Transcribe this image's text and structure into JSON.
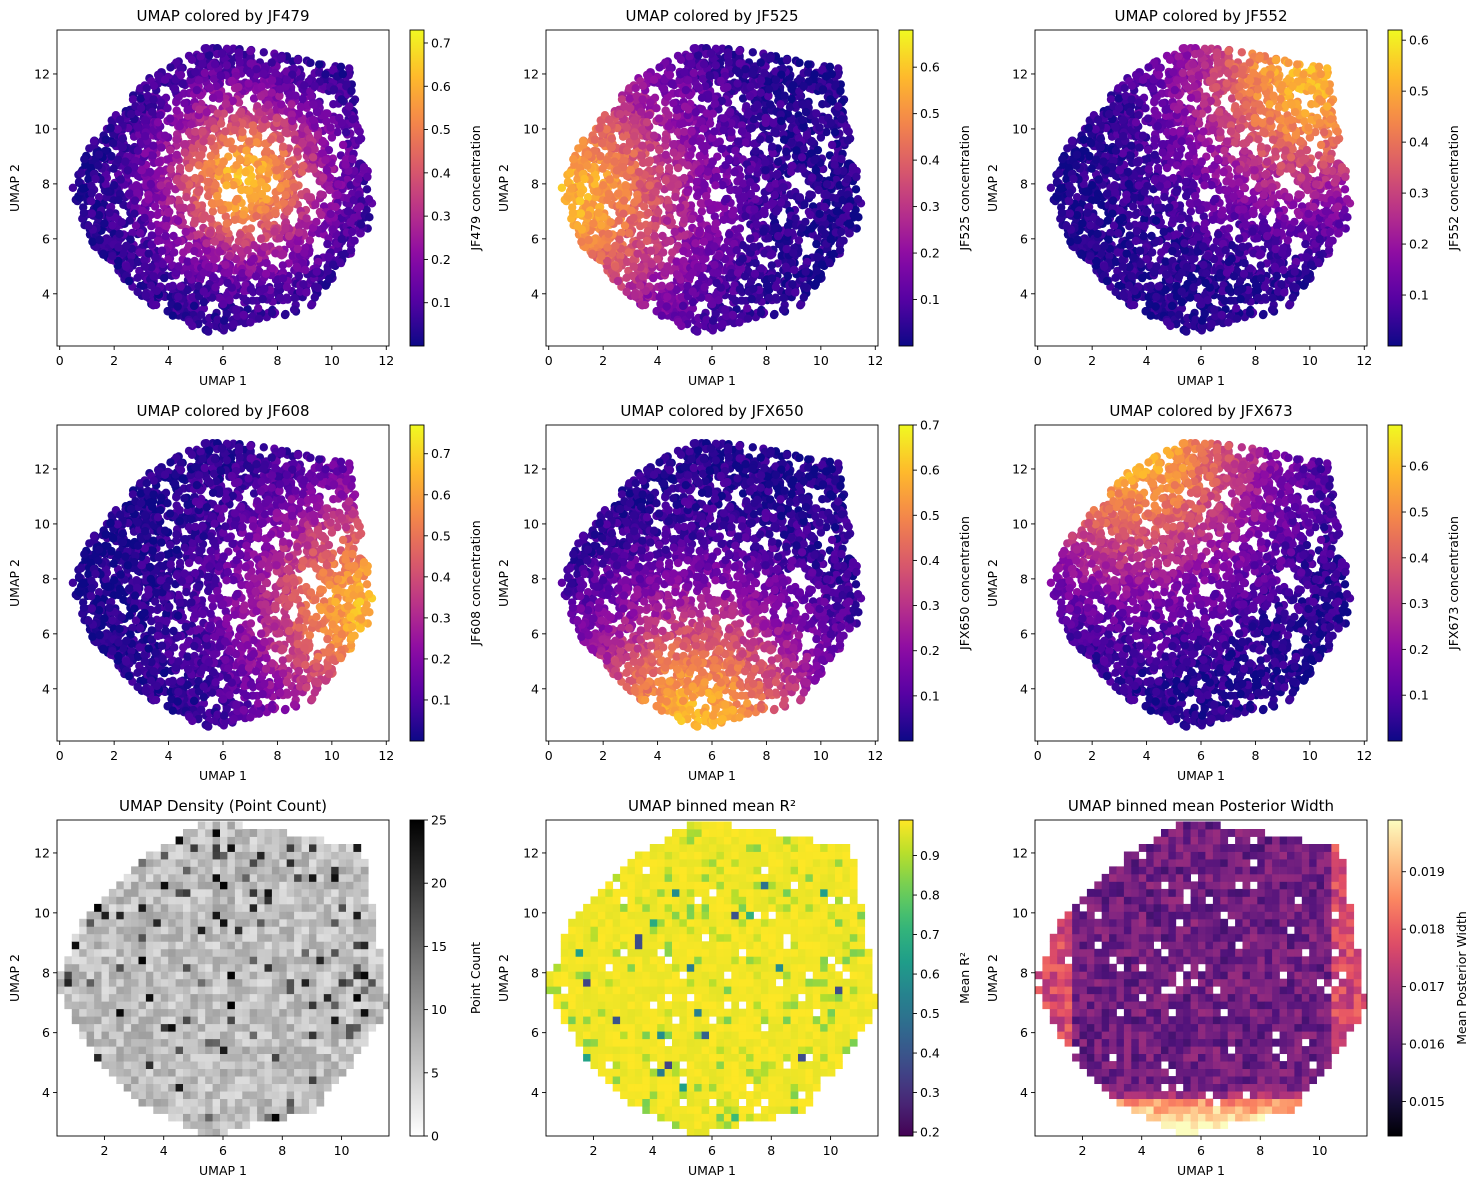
{
  "chart_data": [
    {
      "type": "scatter",
      "title": "UMAP colored by JF479",
      "xlabel": "UMAP 1",
      "ylabel": "UMAP 2",
      "xlim": [
        -0.1,
        12.1
      ],
      "ylim": [
        2.1,
        13.6
      ],
      "xticks": [
        0,
        2,
        4,
        6,
        8,
        10,
        12
      ],
      "yticks": [
        4,
        6,
        8,
        10,
        12
      ],
      "colormap": "plasma",
      "colorbar": {
        "label": "JF479 concentration",
        "range": [
          0.0,
          0.73
        ],
        "ticks": [
          0.1,
          0.2,
          0.3,
          0.4,
          0.5,
          0.6,
          0.7
        ]
      },
      "pattern": {
        "kind": "center",
        "cx": 6.8,
        "cy": 8.2,
        "sigma": 2.1
      }
    },
    {
      "type": "scatter",
      "title": "UMAP colored by JF525",
      "xlabel": "UMAP 1",
      "ylabel": "UMAP 2",
      "xlim": [
        -0.1,
        12.1
      ],
      "ylim": [
        2.1,
        13.6
      ],
      "xticks": [
        0,
        2,
        4,
        6,
        8,
        10,
        12
      ],
      "yticks": [
        4,
        6,
        8,
        10,
        12
      ],
      "colormap": "plasma",
      "colorbar": {
        "label": "JF525 concentration",
        "range": [
          0.0,
          0.68
        ],
        "ticks": [
          0.1,
          0.2,
          0.3,
          0.4,
          0.5,
          0.6
        ]
      },
      "pattern": {
        "kind": "left",
        "cx": 0.6,
        "cy": 7.6,
        "sigma": 3.3
      }
    },
    {
      "type": "scatter",
      "title": "UMAP colored by JF552",
      "xlabel": "UMAP 1",
      "ylabel": "UMAP 2",
      "xlim": [
        -0.1,
        12.1
      ],
      "ylim": [
        2.1,
        13.6
      ],
      "xticks": [
        0,
        2,
        4,
        6,
        8,
        10,
        12
      ],
      "yticks": [
        4,
        6,
        8,
        10,
        12
      ],
      "colormap": "plasma",
      "colorbar": {
        "label": "JF552 concentration",
        "range": [
          0.0,
          0.62
        ],
        "ticks": [
          0.1,
          0.2,
          0.3,
          0.4,
          0.5,
          0.6
        ]
      },
      "pattern": {
        "kind": "topright",
        "cx": 9.8,
        "cy": 11.8,
        "sigma": 3.0
      }
    },
    {
      "type": "scatter",
      "title": "UMAP colored by JF608",
      "xlabel": "UMAP 1",
      "ylabel": "UMAP 2",
      "xlim": [
        -0.1,
        12.1
      ],
      "ylim": [
        2.1,
        13.6
      ],
      "xticks": [
        0,
        2,
        4,
        6,
        8,
        10,
        12
      ],
      "yticks": [
        4,
        6,
        8,
        10,
        12
      ],
      "colormap": "plasma",
      "colorbar": {
        "label": "JF608 concentration",
        "range": [
          0.0,
          0.77
        ],
        "ticks": [
          0.1,
          0.2,
          0.3,
          0.4,
          0.5,
          0.6,
          0.7
        ]
      },
      "pattern": {
        "kind": "right",
        "cx": 11.4,
        "cy": 6.8,
        "sigma": 3.0
      }
    },
    {
      "type": "scatter",
      "title": "UMAP colored by JFX650",
      "xlabel": "UMAP 1",
      "ylabel": "UMAP 2",
      "xlim": [
        -0.1,
        12.1
      ],
      "ylim": [
        2.1,
        13.6
      ],
      "xticks": [
        0,
        2,
        4,
        6,
        8,
        10,
        12
      ],
      "yticks": [
        4,
        6,
        8,
        10,
        12
      ],
      "colormap": "plasma",
      "colorbar": {
        "label": "JFX650 concentration",
        "range": [
          0.0,
          0.7
        ],
        "ticks": [
          0.1,
          0.2,
          0.3,
          0.4,
          0.5,
          0.6,
          0.7
        ]
      },
      "pattern": {
        "kind": "bottom",
        "cx": 5.4,
        "cy": 2.8,
        "sigma": 3.2
      }
    },
    {
      "type": "scatter",
      "title": "UMAP colored by JFX673",
      "xlabel": "UMAP 1",
      "ylabel": "UMAP 2",
      "xlim": [
        -0.1,
        12.1
      ],
      "ylim": [
        2.1,
        13.6
      ],
      "xticks": [
        0,
        2,
        4,
        6,
        8,
        10,
        12
      ],
      "yticks": [
        4,
        6,
        8,
        10,
        12
      ],
      "colormap": "plasma",
      "colorbar": {
        "label": "JFX673 concentration",
        "range": [
          0.0,
          0.69
        ],
        "ticks": [
          0.1,
          0.2,
          0.3,
          0.4,
          0.5,
          0.6
        ]
      },
      "pattern": {
        "kind": "topleft",
        "cx": 3.5,
        "cy": 12.8,
        "sigma": 3.4
      }
    },
    {
      "type": "heatmap",
      "title": "UMAP Density (Point Count)",
      "xlabel": "UMAP 1",
      "ylabel": "UMAP 2",
      "xlim": [
        0.4,
        11.6
      ],
      "ylim": [
        2.55,
        13.1
      ],
      "xticks": [
        2,
        4,
        6,
        8,
        10
      ],
      "yticks": [
        4,
        6,
        8,
        10,
        12
      ],
      "colormap": "gray_r",
      "colorbar": {
        "label": "Point Count",
        "range": [
          0,
          25
        ],
        "ticks": [
          0,
          5,
          10,
          15,
          20,
          25
        ]
      },
      "pattern": {
        "kind": "density"
      }
    },
    {
      "type": "heatmap",
      "title": "UMAP binned mean R²",
      "xlabel": "UMAP 1",
      "ylabel": "UMAP 2",
      "xlim": [
        0.4,
        11.6
      ],
      "ylim": [
        2.55,
        13.1
      ],
      "xticks": [
        2,
        4,
        6,
        8,
        10
      ],
      "yticks": [
        4,
        6,
        8,
        10,
        12
      ],
      "colormap": "viridis",
      "colorbar": {
        "label": "Mean R²",
        "range": [
          0.19,
          0.99
        ],
        "ticks": [
          0.2,
          0.3,
          0.4,
          0.5,
          0.6,
          0.7,
          0.8,
          0.9
        ]
      },
      "pattern": {
        "kind": "r2"
      }
    },
    {
      "type": "heatmap",
      "title": "UMAP binned mean Posterior Width",
      "xlabel": "UMAP 1",
      "ylabel": "UMAP 2",
      "xlim": [
        0.4,
        11.6
      ],
      "ylim": [
        2.55,
        13.1
      ],
      "xticks": [
        2,
        4,
        6,
        8,
        10
      ],
      "yticks": [
        4,
        6,
        8,
        10,
        12
      ],
      "colormap": "magma",
      "colorbar": {
        "label": "Mean Posterior Width",
        "range": [
          0.0144,
          0.0199
        ],
        "ticks": [
          0.015,
          0.016,
          0.017,
          0.018,
          0.019
        ]
      },
      "pattern": {
        "kind": "pw"
      }
    }
  ],
  "umap_outline": [
    [
      0.4,
      7.7
    ],
    [
      1.2,
      9.6
    ],
    [
      3.2,
      11.8
    ],
    [
      5.3,
      13.0
    ],
    [
      7.2,
      12.9
    ],
    [
      9.1,
      12.5
    ],
    [
      10.7,
      12.2
    ],
    [
      11.1,
      9.9
    ],
    [
      11.6,
      6.8
    ],
    [
      10.6,
      5.3
    ],
    [
      9.1,
      3.4
    ],
    [
      7.2,
      3.0
    ],
    [
      5.8,
      2.55
    ],
    [
      5.0,
      2.7
    ],
    [
      4.3,
      3.1
    ],
    [
      3.0,
      3.8
    ],
    [
      1.2,
      5.8
    ]
  ]
}
